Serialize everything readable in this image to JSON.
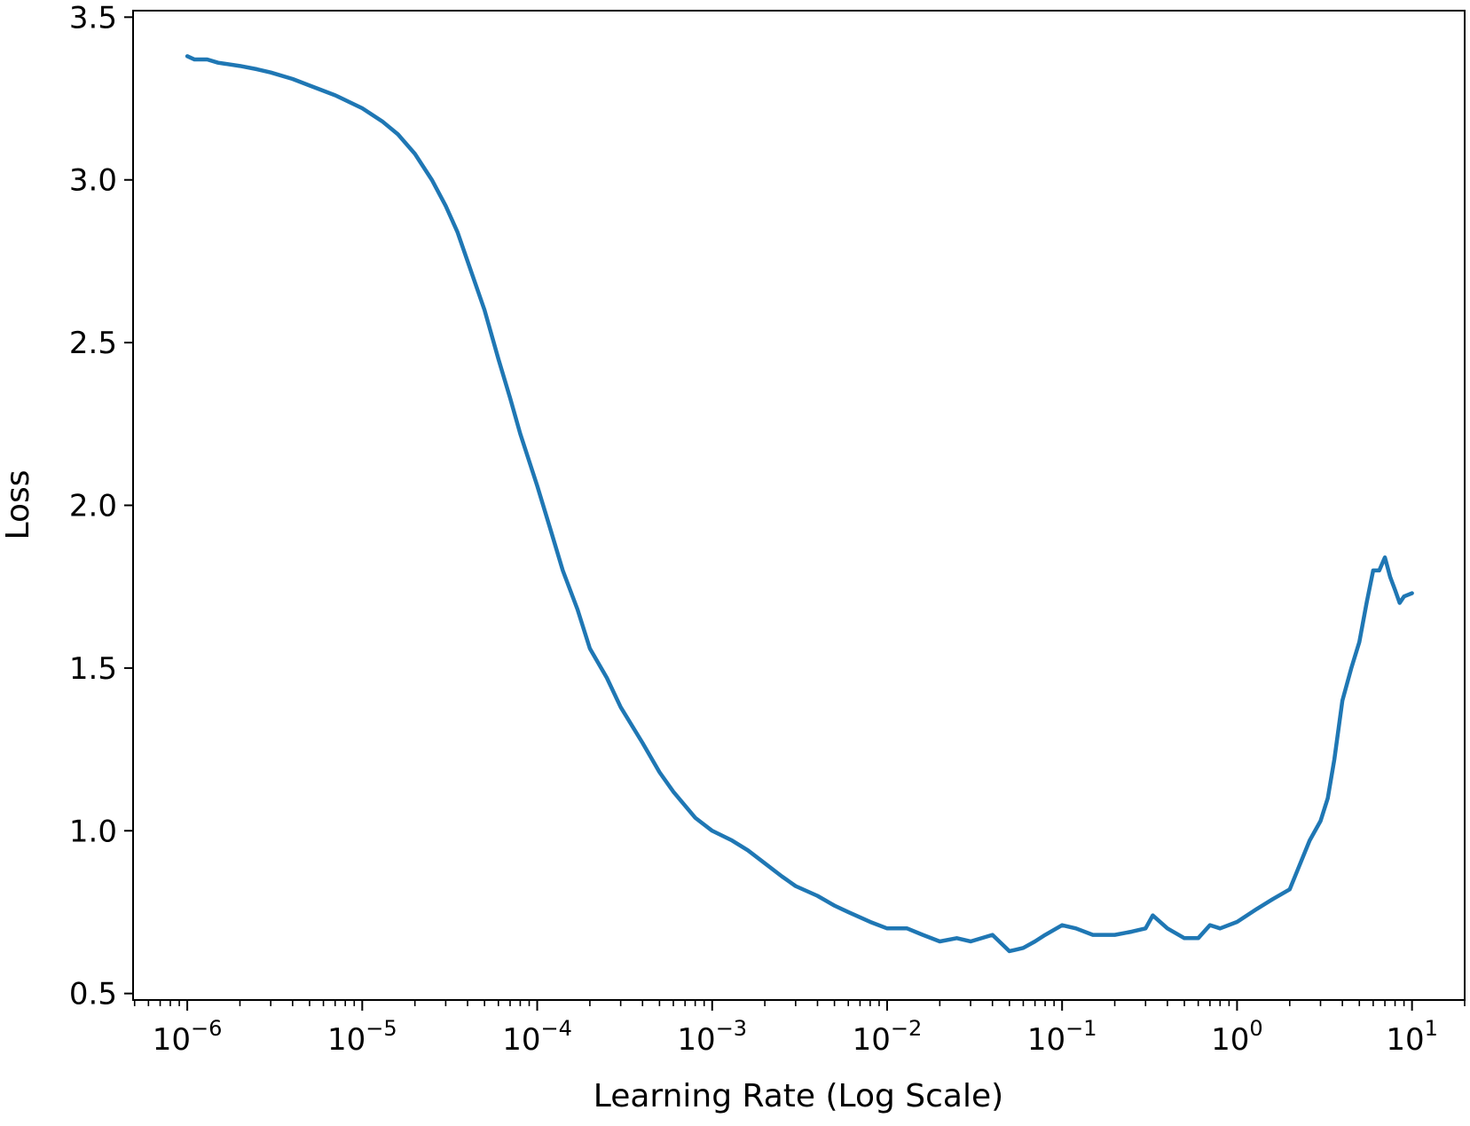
{
  "chart_data": {
    "type": "line",
    "title": "",
    "xlabel": "Learning Rate (Log Scale)",
    "ylabel": "Loss",
    "xscale": "log",
    "xlim": [
      4.9e-07,
      20
    ],
    "ylim": [
      0.48,
      3.52
    ],
    "grid": false,
    "legend": "none",
    "x_ticks": [
      {
        "value": 1e-06,
        "base": "10",
        "exp": "−6"
      },
      {
        "value": 1e-05,
        "base": "10",
        "exp": "−5"
      },
      {
        "value": 0.0001,
        "base": "10",
        "exp": "−4"
      },
      {
        "value": 0.001,
        "base": "10",
        "exp": "−3"
      },
      {
        "value": 0.01,
        "base": "10",
        "exp": "−2"
      },
      {
        "value": 0.1,
        "base": "10",
        "exp": "−1"
      },
      {
        "value": 1,
        "base": "10",
        "exp": "0"
      },
      {
        "value": 10,
        "base": "10",
        "exp": "1"
      }
    ],
    "y_ticks": [
      {
        "value": 0.5,
        "label": "0.5"
      },
      {
        "value": 1.0,
        "label": "1.0"
      },
      {
        "value": 1.5,
        "label": "1.5"
      },
      {
        "value": 2.0,
        "label": "2.0"
      },
      {
        "value": 2.5,
        "label": "2.5"
      },
      {
        "value": 3.0,
        "label": "3.0"
      },
      {
        "value": 3.5,
        "label": "3.5"
      }
    ],
    "series": [
      {
        "color": "#1f77b4",
        "points": [
          [
            1e-06,
            3.38
          ],
          [
            1.1e-06,
            3.37
          ],
          [
            1.3e-06,
            3.37
          ],
          [
            1.5e-06,
            3.36
          ],
          [
            2e-06,
            3.35
          ],
          [
            2.5e-06,
            3.34
          ],
          [
            3e-06,
            3.33
          ],
          [
            4e-06,
            3.31
          ],
          [
            5e-06,
            3.29
          ],
          [
            7e-06,
            3.26
          ],
          [
            1e-05,
            3.22
          ],
          [
            1.3e-05,
            3.18
          ],
          [
            1.6e-05,
            3.14
          ],
          [
            2e-05,
            3.08
          ],
          [
            2.5e-05,
            3.0
          ],
          [
            3e-05,
            2.92
          ],
          [
            3.5e-05,
            2.84
          ],
          [
            4e-05,
            2.75
          ],
          [
            5e-05,
            2.6
          ],
          [
            6e-05,
            2.45
          ],
          [
            7e-05,
            2.33
          ],
          [
            8e-05,
            2.22
          ],
          [
            0.0001,
            2.06
          ],
          [
            0.00012,
            1.92
          ],
          [
            0.00014,
            1.8
          ],
          [
            0.00017,
            1.68
          ],
          [
            0.0002,
            1.56
          ],
          [
            0.00025,
            1.47
          ],
          [
            0.0003,
            1.38
          ],
          [
            0.0004,
            1.27
          ],
          [
            0.0005,
            1.18
          ],
          [
            0.0006,
            1.12
          ],
          [
            0.0008,
            1.04
          ],
          [
            0.001,
            1.0
          ],
          [
            0.0013,
            0.97
          ],
          [
            0.0016,
            0.94
          ],
          [
            0.002,
            0.9
          ],
          [
            0.0025,
            0.86
          ],
          [
            0.003,
            0.83
          ],
          [
            0.004,
            0.8
          ],
          [
            0.005,
            0.77
          ],
          [
            0.006,
            0.75
          ],
          [
            0.008,
            0.72
          ],
          [
            0.01,
            0.7
          ],
          [
            0.013,
            0.7
          ],
          [
            0.016,
            0.68
          ],
          [
            0.02,
            0.66
          ],
          [
            0.025,
            0.67
          ],
          [
            0.03,
            0.66
          ],
          [
            0.04,
            0.68
          ],
          [
            0.05,
            0.63
          ],
          [
            0.06,
            0.64
          ],
          [
            0.07,
            0.66
          ],
          [
            0.08,
            0.68
          ],
          [
            0.1,
            0.71
          ],
          [
            0.12,
            0.7
          ],
          [
            0.15,
            0.68
          ],
          [
            0.2,
            0.68
          ],
          [
            0.25,
            0.69
          ],
          [
            0.3,
            0.7
          ],
          [
            0.33,
            0.74
          ],
          [
            0.4,
            0.7
          ],
          [
            0.5,
            0.67
          ],
          [
            0.6,
            0.67
          ],
          [
            0.7,
            0.71
          ],
          [
            0.8,
            0.7
          ],
          [
            1.0,
            0.72
          ],
          [
            1.3,
            0.76
          ],
          [
            1.6,
            0.79
          ],
          [
            2.0,
            0.82
          ],
          [
            2.3,
            0.9
          ],
          [
            2.6,
            0.97
          ],
          [
            3.0,
            1.03
          ],
          [
            3.3,
            1.1
          ],
          [
            3.6,
            1.22
          ],
          [
            4.0,
            1.4
          ],
          [
            4.5,
            1.5
          ],
          [
            5.0,
            1.58
          ],
          [
            5.5,
            1.7
          ],
          [
            6.0,
            1.8
          ],
          [
            6.5,
            1.8
          ],
          [
            7.0,
            1.84
          ],
          [
            7.5,
            1.78
          ],
          [
            8.0,
            1.74
          ],
          [
            8.5,
            1.7
          ],
          [
            9.0,
            1.72
          ],
          [
            10.0,
            1.73
          ]
        ]
      }
    ]
  }
}
